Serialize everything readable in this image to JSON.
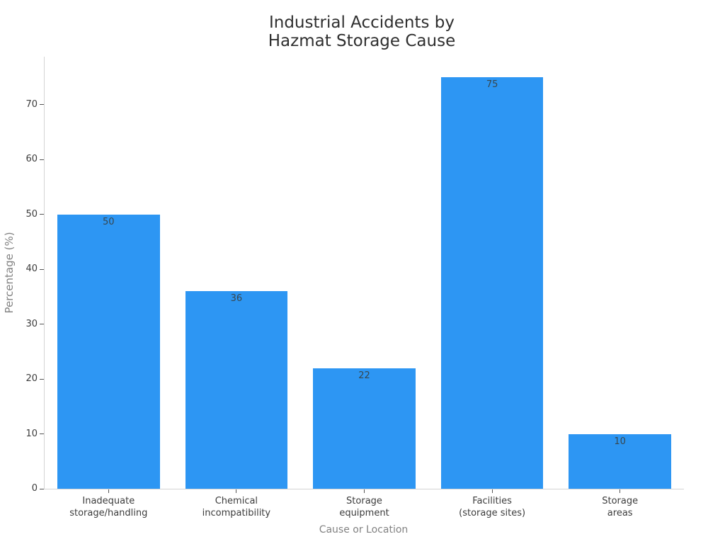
{
  "chart_data": {
    "type": "bar",
    "title": "Industrial Accidents by\nHazmat Storage Cause",
    "xlabel": "Cause or Location",
    "ylabel": "Percentage (%)",
    "categories": [
      "Inadequate\nstorage/handling",
      "Chemical\nincompatibility",
      "Storage\nequipment",
      "Facilities\n(storage sites)",
      "Storage\nareas"
    ],
    "values": [
      50,
      36,
      22,
      75,
      10
    ],
    "value_labels": [
      "50",
      "36",
      "22",
      "75",
      "10"
    ],
    "yticks": [
      0,
      10,
      20,
      30,
      40,
      50,
      60,
      70
    ],
    "ylim": [
      0,
      78.75
    ],
    "bar_width_fraction": 0.8,
    "grid": false,
    "legend": null,
    "colors": {
      "bar": "#2d96f3",
      "title_text": "#2f2f2f",
      "tick_text": "#3c3c3c",
      "axis_title_text": "#828282",
      "value_label_text": "#37474f",
      "spine": "#d4d4d4",
      "tick_mark": "#555555"
    }
  }
}
